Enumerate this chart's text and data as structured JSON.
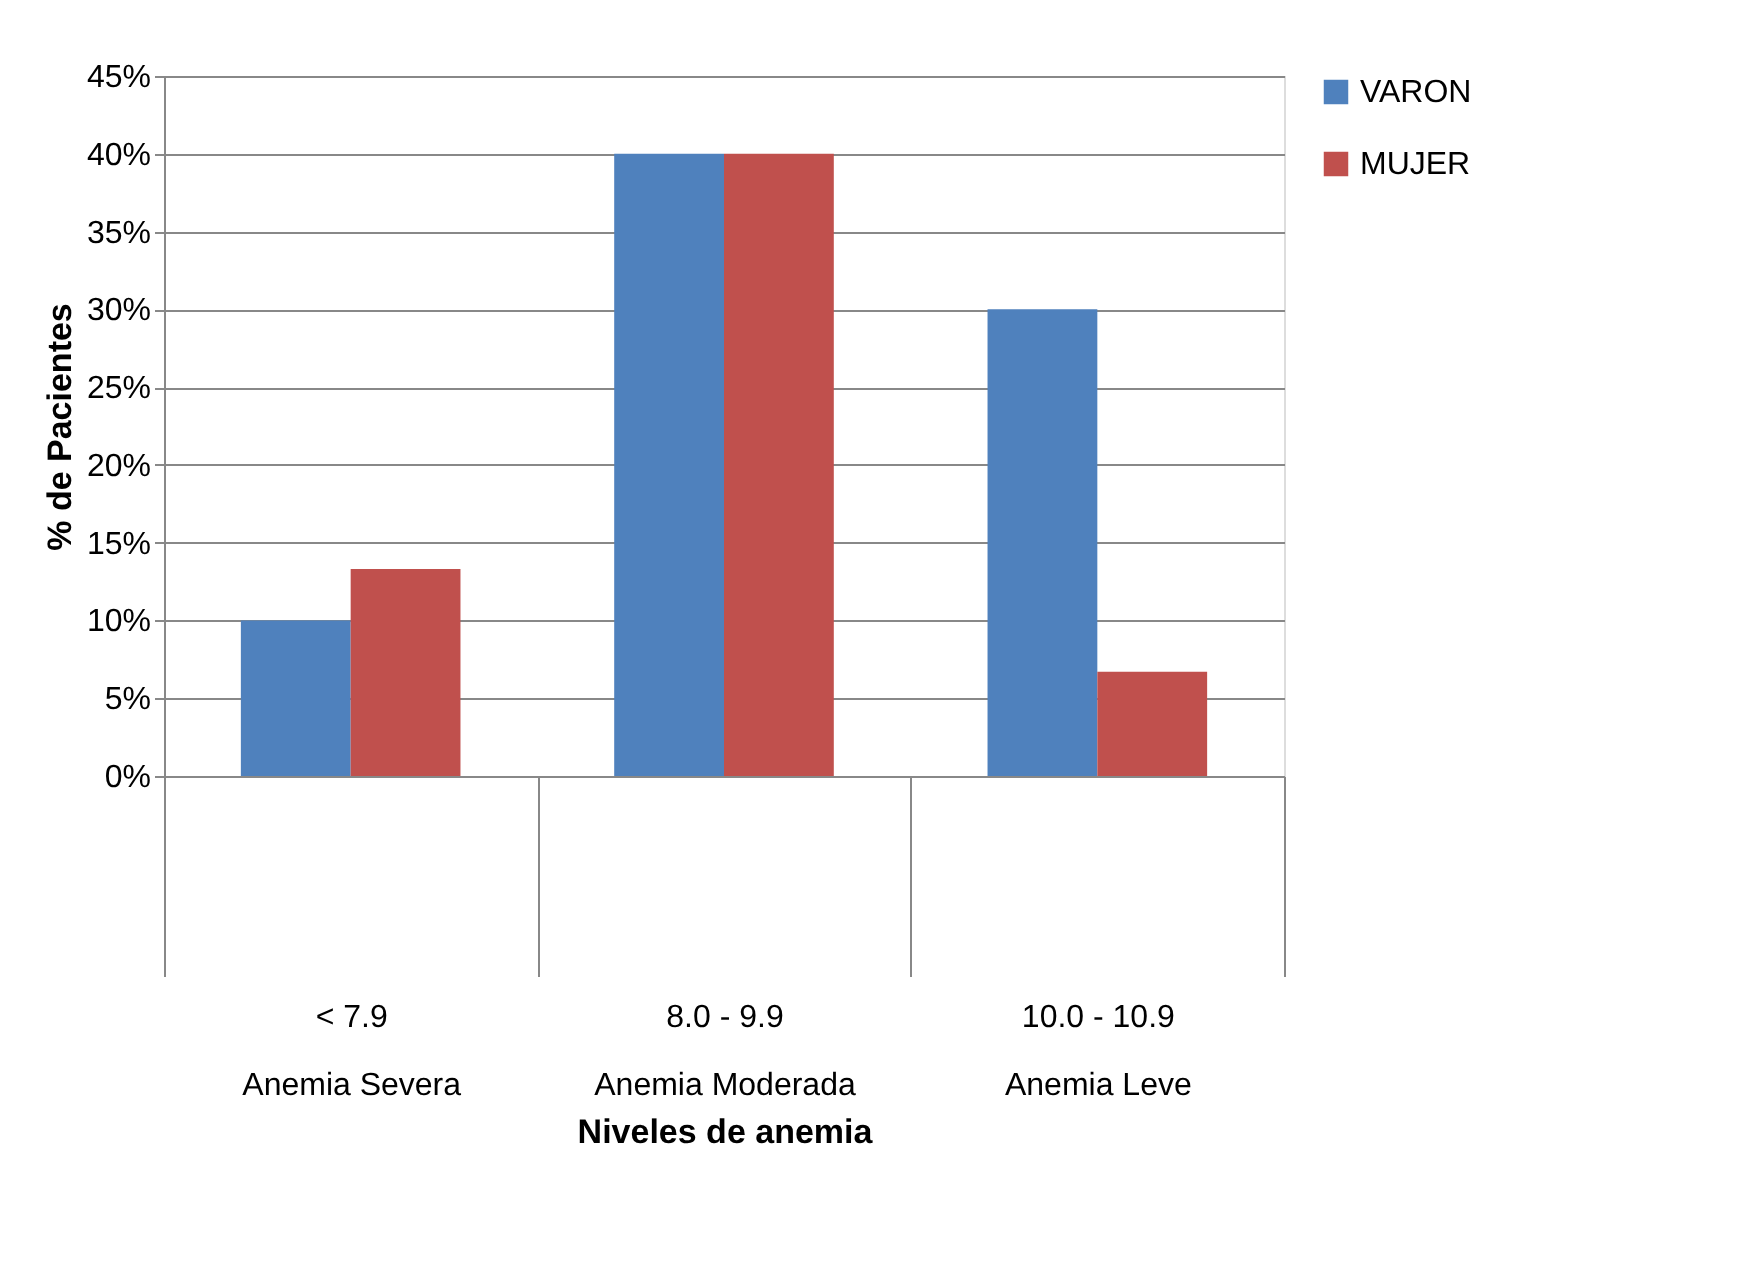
{
  "chart_data": {
    "type": "bar",
    "xlabel": "Niveles de anemia",
    "ylabel": "% de Pacientes",
    "categories": [
      "< 7.9\nAnemia Severa",
      "8.0 - 9.9\nAnemia Moderada",
      "10.0 - 10.9\nAnemia Leve"
    ],
    "series": [
      {
        "name": "VARON",
        "color": "#4f81bd",
        "values": [
          10,
          40,
          30
        ]
      },
      {
        "name": "MUJER",
        "color": "#c0504d",
        "values": [
          13.3,
          40,
          6.7
        ]
      }
    ],
    "ylim": [
      0,
      45
    ],
    "yticks": [
      {
        "value": 0,
        "label": "0%"
      },
      {
        "value": 5,
        "label": "5%"
      },
      {
        "value": 10,
        "label": "10%"
      },
      {
        "value": 15,
        "label": "15%"
      },
      {
        "value": 20,
        "label": "20%"
      },
      {
        "value": 25,
        "label": "25%"
      },
      {
        "value": 30,
        "label": "30%"
      },
      {
        "value": 35,
        "label": "35%"
      },
      {
        "value": 40,
        "label": "40%"
      },
      {
        "value": 45,
        "label": "45%"
      }
    ],
    "grid": "y",
    "legend": "right"
  }
}
